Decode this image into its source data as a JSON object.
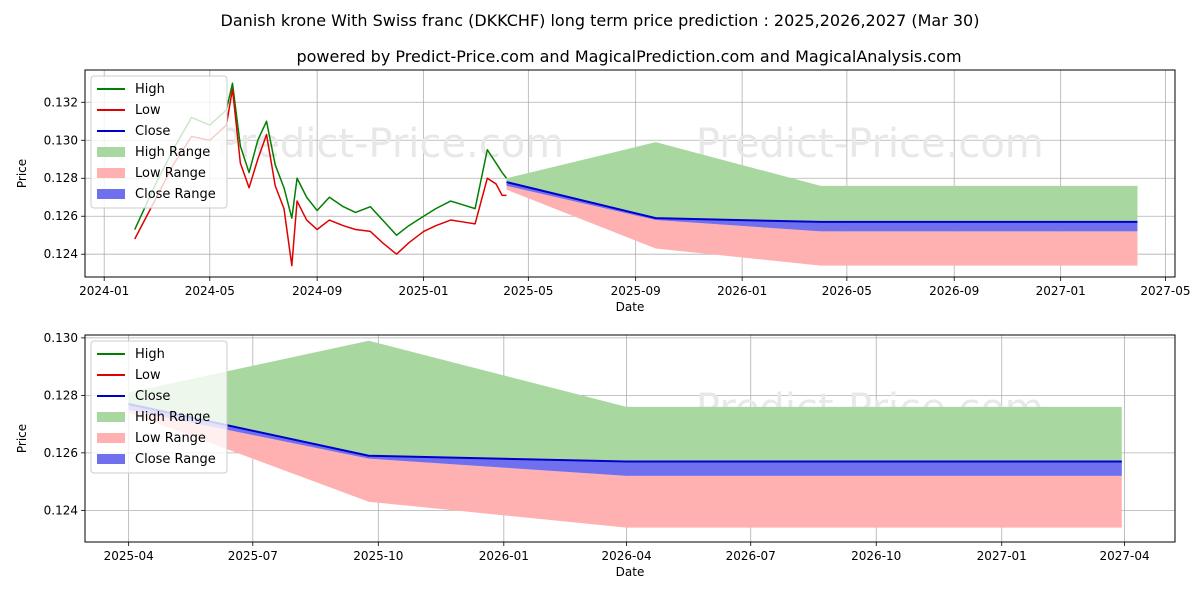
{
  "title": "Danish krone With Swiss franc (DKKCHF) long term price prediction : 2025,2026,2027 (Mar 30)",
  "subtitle": "powered by Predict-Price.com and MagicalPrediction.com and MagicalAnalysis.com",
  "watermark": "Predict-Price.com",
  "colors": {
    "high": "#008000",
    "low": "#e00000",
    "close": "#0000cc",
    "high_range": "#a8d8a0",
    "low_range": "#ffb0b0",
    "close_range": "#7070ee",
    "grid": "#b0b0b0",
    "watermark": "#e8e8e8"
  },
  "chart_data": [
    {
      "type": "line",
      "panel": "top",
      "xlabel": "Date",
      "ylabel": "Price",
      "grid": true,
      "legend": "top-left",
      "xlim": [
        "2023-12-10",
        "2027-05-12"
      ],
      "ylim": [
        0.1228,
        0.1337
      ],
      "x_ticks": [
        "2024-01",
        "2024-05",
        "2024-09",
        "2025-01",
        "2025-05",
        "2025-09",
        "2026-01",
        "2026-05",
        "2026-09",
        "2027-01",
        "2027-05"
      ],
      "x_tick_dates": [
        "2024-01-01",
        "2024-05-01",
        "2024-09-01",
        "2025-01-01",
        "2025-05-01",
        "2025-09-01",
        "2026-01-01",
        "2026-05-01",
        "2026-09-01",
        "2027-01-01",
        "2027-05-01"
      ],
      "y_ticks": [
        0.124,
        0.126,
        0.128,
        0.13,
        0.132
      ],
      "y_tick_labels": [
        "0.124",
        "0.126",
        "0.128",
        "0.130",
        "0.132"
      ],
      "legend_entries": [
        "High",
        "Low",
        "Close",
        "High Range",
        "Low Range",
        "Close Range"
      ],
      "series": [
        {
          "name": "High",
          "x": [
            "2024-02-05",
            "2024-03-01",
            "2024-03-20",
            "2024-04-10",
            "2024-05-01",
            "2024-05-20",
            "2024-05-27",
            "2024-06-05",
            "2024-06-15",
            "2024-06-25",
            "2024-07-05",
            "2024-07-15",
            "2024-07-25",
            "2024-08-03",
            "2024-08-09",
            "2024-08-20",
            "2024-09-01",
            "2024-09-15",
            "2024-10-01",
            "2024-10-15",
            "2024-11-01",
            "2024-11-15",
            "2024-12-01",
            "2024-12-15",
            "2025-01-01",
            "2025-01-15",
            "2025-02-01",
            "2025-02-15",
            "2025-03-01",
            "2025-03-15",
            "2025-03-25",
            "2025-04-01",
            "2025-04-06"
          ],
          "values": [
            0.1253,
            0.1278,
            0.1295,
            0.1312,
            0.1308,
            0.1316,
            0.133,
            0.1297,
            0.1283,
            0.13,
            0.131,
            0.1287,
            0.1275,
            0.1259,
            0.128,
            0.127,
            0.1263,
            0.127,
            0.1265,
            0.1262,
            0.1265,
            0.1258,
            0.125,
            0.1255,
            0.126,
            0.1264,
            0.1268,
            0.1266,
            0.1264,
            0.1295,
            0.1288,
            0.1283,
            0.128
          ]
        },
        {
          "name": "Low",
          "x": [
            "2024-02-05",
            "2024-03-01",
            "2024-03-20",
            "2024-04-10",
            "2024-05-01",
            "2024-05-20",
            "2024-05-27",
            "2024-06-05",
            "2024-06-15",
            "2024-06-25",
            "2024-07-05",
            "2024-07-15",
            "2024-07-25",
            "2024-08-03",
            "2024-08-09",
            "2024-08-20",
            "2024-09-01",
            "2024-09-15",
            "2024-10-01",
            "2024-10-15",
            "2024-11-01",
            "2024-11-15",
            "2024-12-01",
            "2024-12-15",
            "2025-01-01",
            "2025-01-15",
            "2025-02-01",
            "2025-02-15",
            "2025-03-01",
            "2025-03-15",
            "2025-03-25",
            "2025-04-01",
            "2025-04-06"
          ],
          "values": [
            0.1248,
            0.127,
            0.1287,
            0.1302,
            0.13,
            0.1308,
            0.1327,
            0.1288,
            0.1275,
            0.129,
            0.1303,
            0.1276,
            0.1264,
            0.1234,
            0.1268,
            0.1258,
            0.1253,
            0.1258,
            0.1255,
            0.1253,
            0.1252,
            0.1246,
            0.124,
            0.1246,
            0.1252,
            0.1255,
            0.1258,
            0.1257,
            0.1256,
            0.128,
            0.1277,
            0.1271,
            0.1271
          ]
        },
        {
          "name": "Close",
          "x": [
            "2025-04-06",
            "2025-09-24",
            "2026-04-01",
            "2027-03-30"
          ],
          "values": [
            0.1278,
            0.1259,
            0.1257,
            0.1257
          ]
        },
        {
          "name": "High Range",
          "x": [
            "2025-04-06",
            "2025-09-24",
            "2026-04-01",
            "2027-03-30"
          ],
          "upper": [
            0.128,
            0.1299,
            0.1276,
            0.1276
          ],
          "lower": [
            0.1278,
            0.1259,
            0.1257,
            0.1257
          ]
        },
        {
          "name": "Low Range",
          "x": [
            "2025-04-06",
            "2025-09-24",
            "2026-04-01",
            "2027-03-30"
          ],
          "upper": [
            0.1276,
            0.1258,
            0.1252,
            0.1252
          ],
          "lower": [
            0.1274,
            0.1243,
            0.1234,
            0.1234
          ]
        },
        {
          "name": "Close Range",
          "x": [
            "2025-04-06",
            "2025-09-24",
            "2026-04-01",
            "2027-03-30"
          ],
          "upper": [
            0.1278,
            0.1259,
            0.1257,
            0.1257
          ],
          "lower": [
            0.1276,
            0.1258,
            0.1252,
            0.1252
          ]
        }
      ]
    },
    {
      "type": "line",
      "panel": "bottom",
      "xlabel": "Date",
      "ylabel": "Price",
      "grid": true,
      "legend": "top-left",
      "xlim": [
        "2025-02-28",
        "2027-05-08"
      ],
      "ylim": [
        0.1229,
        0.1301
      ],
      "x_ticks": [
        "2025-04",
        "2025-07",
        "2025-10",
        "2026-01",
        "2026-04",
        "2026-07",
        "2026-10",
        "2027-01",
        "2027-04"
      ],
      "x_tick_dates": [
        "2025-04-01",
        "2025-07-01",
        "2025-10-01",
        "2026-01-01",
        "2026-04-01",
        "2026-07-01",
        "2026-10-01",
        "2027-01-01",
        "2027-04-01"
      ],
      "y_ticks": [
        0.124,
        0.126,
        0.128,
        0.13
      ],
      "y_tick_labels": [
        "0.124",
        "0.126",
        "0.128",
        "0.130"
      ],
      "legend_entries": [
        "High",
        "Low",
        "Close",
        "High Range",
        "Low Range",
        "Close Range"
      ],
      "series": [
        {
          "name": "Close",
          "x": [
            "2025-04-01",
            "2025-09-24",
            "2026-04-01",
            "2027-03-30"
          ],
          "values": [
            0.1277,
            0.1259,
            0.1257,
            0.1257
          ]
        },
        {
          "name": "High Range",
          "x": [
            "2025-04-01",
            "2025-09-24",
            "2026-04-01",
            "2027-03-30"
          ],
          "upper": [
            0.1281,
            0.1299,
            0.1276,
            0.1276
          ],
          "lower": [
            0.1277,
            0.1259,
            0.1257,
            0.1257
          ]
        },
        {
          "name": "Low Range",
          "x": [
            "2025-04-01",
            "2025-09-24",
            "2026-04-01",
            "2027-03-30"
          ],
          "upper": [
            0.1275,
            0.1258,
            0.1252,
            0.1252
          ],
          "lower": [
            0.1274,
            0.1243,
            0.1234,
            0.1234
          ]
        },
        {
          "name": "Close Range",
          "x": [
            "2025-04-01",
            "2025-09-24",
            "2026-04-01",
            "2027-03-30"
          ],
          "upper": [
            0.1277,
            0.1259,
            0.1257,
            0.1257
          ],
          "lower": [
            0.1275,
            0.1258,
            0.1252,
            0.1252
          ]
        }
      ]
    }
  ]
}
